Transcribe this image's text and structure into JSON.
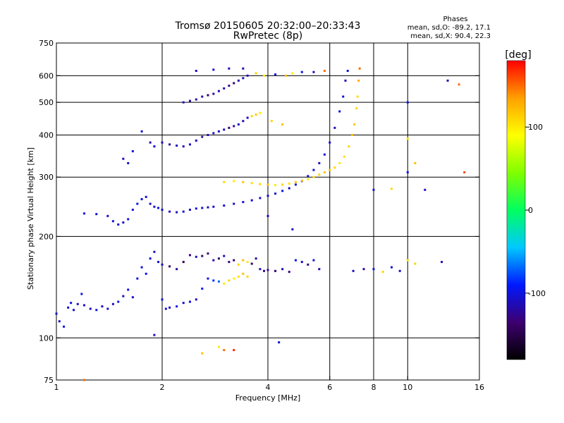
{
  "chart_data": {
    "type": "scatter",
    "title": "Tromsø 20150605 20:32:00–20:33:43",
    "subtitle": "RwPretec (8p)",
    "xlabel": "Frequency [MHz]",
    "ylabel": "Stationary phase Virtual Height [km]",
    "x_scale": "log",
    "y_scale": "log",
    "xlim": [
      1,
      16
    ],
    "ylim": [
      75,
      750
    ],
    "grid": true,
    "x_ticks": [
      1,
      2,
      4,
      6,
      8,
      10,
      16
    ],
    "x_gridlines": [
      2,
      4,
      6,
      8,
      10
    ],
    "y_ticks": [
      75,
      100,
      200,
      300,
      400,
      500,
      600,
      750
    ],
    "y_gridlines": [
      100,
      200,
      300,
      400,
      500,
      600
    ],
    "stats": {
      "heading": "Phases",
      "line_o": "mean, sd,O: -89.2, 17.1",
      "line_x": "mean, sd,X:  90.4, 22.3"
    },
    "colorbar": {
      "label": "[deg]",
      "min": -180,
      "max": 180,
      "ticks": [
        100,
        0,
        -100
      ],
      "colors": [
        "#000000",
        "#3d0070",
        "#0018ff",
        "#00c8ff",
        "#00ff60",
        "#80ff00",
        "#ffff00",
        "#ffa000",
        "#ff0000"
      ]
    },
    "series": [
      {
        "trace": "lower-E-and-F1-traces",
        "points": [
          [
            1.0,
            118,
            -105
          ],
          [
            1.02,
            112,
            -110
          ],
          [
            1.05,
            108,
            -100
          ],
          [
            1.08,
            123,
            -108
          ],
          [
            1.1,
            127,
            -100
          ],
          [
            1.12,
            121,
            -105
          ],
          [
            1.15,
            126,
            -112
          ],
          [
            1.18,
            135,
            -102
          ],
          [
            1.2,
            125,
            -108
          ],
          [
            1.25,
            122,
            -110
          ],
          [
            1.3,
            121,
            -100
          ],
          [
            1.35,
            124,
            -110
          ],
          [
            1.4,
            122,
            -105
          ],
          [
            1.45,
            126,
            -108
          ],
          [
            1.5,
            128,
            -100
          ],
          [
            1.55,
            133,
            -110
          ],
          [
            1.6,
            139,
            -102
          ],
          [
            1.65,
            132,
            -108
          ],
          [
            1.7,
            150,
            -100
          ],
          [
            1.75,
            162,
            -105
          ],
          [
            1.8,
            155,
            -95
          ],
          [
            1.85,
            172,
            -100
          ],
          [
            1.9,
            180,
            -108
          ],
          [
            1.95,
            168,
            -100
          ],
          [
            2.0,
            130,
            -95
          ],
          [
            2.05,
            122,
            -105
          ],
          [
            2.1,
            123,
            -110
          ],
          [
            2.2,
            124,
            -100
          ],
          [
            2.3,
            127,
            -108
          ],
          [
            2.4,
            128,
            -100
          ],
          [
            2.5,
            130,
            -110
          ],
          [
            2.6,
            140,
            -90
          ],
          [
            2.7,
            150,
            -100
          ],
          [
            2.8,
            148,
            -85
          ],
          [
            2.9,
            147,
            -70
          ],
          [
            3.0,
            145,
            100
          ],
          [
            3.1,
            148,
            110
          ],
          [
            3.2,
            150,
            95
          ],
          [
            3.3,
            152,
            105
          ],
          [
            3.4,
            155,
            120
          ],
          [
            3.5,
            152,
            110
          ]
        ]
      },
      {
        "trace": "upper-F1-band",
        "points": [
          [
            2.0,
            165,
            -110
          ],
          [
            2.1,
            163,
            -140
          ],
          [
            2.2,
            160,
            -120
          ],
          [
            2.3,
            168,
            -150
          ],
          [
            2.4,
            176,
            -130
          ],
          [
            2.5,
            174,
            -110
          ],
          [
            2.6,
            175,
            -140
          ],
          [
            2.7,
            178,
            -130
          ],
          [
            2.8,
            170,
            -120
          ],
          [
            2.9,
            172,
            -140
          ],
          [
            3.0,
            175,
            -110
          ],
          [
            3.1,
            168,
            -130
          ],
          [
            3.2,
            170,
            -140
          ],
          [
            3.3,
            165,
            110
          ],
          [
            3.4,
            170,
            120
          ],
          [
            3.5,
            168,
            100
          ],
          [
            3.6,
            166,
            -140
          ],
          [
            3.7,
            172,
            -120
          ],
          [
            3.8,
            160,
            -110
          ],
          [
            3.9,
            158,
            -130
          ],
          [
            4.0,
            159,
            -120
          ],
          [
            4.2,
            158,
            -140
          ],
          [
            4.4,
            160,
            -110
          ],
          [
            4.6,
            157,
            -130
          ],
          [
            4.8,
            170,
            -100
          ],
          [
            5.0,
            168,
            -110
          ],
          [
            5.2,
            165,
            -130
          ],
          [
            5.4,
            170,
            -105
          ],
          [
            5.6,
            160,
            -120
          ],
          [
            7.0,
            158,
            -110
          ],
          [
            7.5,
            160,
            -120
          ],
          [
            8.0,
            160,
            -100
          ],
          [
            8.5,
            157,
            110
          ],
          [
            9.0,
            162,
            -105
          ],
          [
            9.5,
            158,
            -110
          ],
          [
            10.0,
            170,
            100
          ],
          [
            10.5,
            166,
            110
          ]
        ]
      },
      {
        "trace": "F-region-o-trace",
        "points": [
          [
            1.2,
            234,
            -100
          ],
          [
            1.3,
            233,
            -105
          ],
          [
            1.4,
            230,
            -110
          ],
          [
            1.45,
            222,
            -100
          ],
          [
            1.5,
            217,
            -105
          ],
          [
            1.55,
            220,
            -110
          ],
          [
            1.6,
            225,
            -100
          ],
          [
            1.65,
            240,
            -105
          ],
          [
            1.7,
            250,
            -95
          ],
          [
            1.75,
            258,
            -100
          ],
          [
            1.8,
            262,
            -105
          ],
          [
            1.85,
            250,
            -108
          ],
          [
            1.9,
            245,
            -110
          ],
          [
            1.95,
            243,
            -100
          ],
          [
            2.0,
            240,
            -105
          ],
          [
            2.1,
            237,
            -110
          ],
          [
            2.2,
            236,
            -108
          ],
          [
            2.3,
            237,
            -105
          ],
          [
            2.4,
            240,
            -110
          ],
          [
            2.5,
            242,
            -100
          ],
          [
            2.6,
            243,
            -105
          ],
          [
            2.7,
            244,
            -110
          ],
          [
            2.8,
            245,
            -108
          ],
          [
            3.0,
            247,
            -105
          ],
          [
            3.2,
            250,
            -110
          ],
          [
            3.4,
            253,
            -100
          ],
          [
            3.6,
            256,
            -105
          ],
          [
            3.8,
            260,
            -110
          ],
          [
            4.0,
            264,
            -108
          ],
          [
            4.2,
            268,
            -105
          ],
          [
            4.4,
            273,
            -100
          ],
          [
            4.6,
            278,
            -110
          ],
          [
            4.8,
            285,
            -105
          ],
          [
            5.0,
            292,
            -100
          ],
          [
            5.2,
            302,
            -108
          ],
          [
            5.4,
            315,
            -105
          ],
          [
            5.6,
            330,
            -110
          ],
          [
            5.8,
            350,
            -100
          ],
          [
            6.0,
            380,
            -105
          ],
          [
            6.2,
            420,
            -110
          ],
          [
            6.4,
            470,
            -100
          ],
          [
            6.55,
            520,
            -105
          ],
          [
            6.65,
            580,
            -110
          ],
          [
            6.75,
            620,
            -100
          ]
        ]
      },
      {
        "trace": "F-region-x-trace",
        "points": [
          [
            3.0,
            290,
            110
          ],
          [
            3.2,
            292,
            100
          ],
          [
            3.4,
            290,
            115
          ],
          [
            3.6,
            288,
            105
          ],
          [
            3.8,
            286,
            110
          ],
          [
            4.0,
            285,
            120
          ],
          [
            4.2,
            284,
            100
          ],
          [
            4.4,
            285,
            110
          ],
          [
            4.6,
            287,
            105
          ],
          [
            4.8,
            290,
            115
          ],
          [
            5.0,
            293,
            110
          ],
          [
            5.2,
            296,
            100
          ],
          [
            5.4,
            300,
            105
          ],
          [
            5.6,
            305,
            110
          ],
          [
            5.8,
            310,
            120
          ],
          [
            6.0,
            315,
            115
          ],
          [
            6.2,
            320,
            110
          ],
          [
            6.4,
            330,
            100
          ],
          [
            6.6,
            345,
            105
          ],
          [
            6.8,
            370,
            110
          ],
          [
            6.95,
            400,
            120
          ],
          [
            7.05,
            430,
            115
          ],
          [
            7.15,
            480,
            110
          ],
          [
            7.2,
            520,
            105
          ],
          [
            7.25,
            580,
            130
          ],
          [
            7.3,
            630,
            150
          ]
        ]
      },
      {
        "trace": "multi-hop-echoes-400km",
        "points": [
          [
            2.0,
            380,
            -110
          ],
          [
            2.1,
            375,
            -120
          ],
          [
            2.2,
            372,
            -110
          ],
          [
            2.3,
            370,
            -115
          ],
          [
            2.4,
            375,
            -105
          ],
          [
            2.5,
            385,
            -110
          ],
          [
            2.6,
            395,
            -120
          ],
          [
            2.7,
            400,
            -115
          ],
          [
            2.8,
            405,
            -110
          ],
          [
            2.9,
            410,
            -105
          ],
          [
            3.0,
            415,
            -110
          ],
          [
            3.1,
            420,
            -140
          ],
          [
            3.2,
            425,
            -120
          ],
          [
            3.3,
            430,
            -110
          ],
          [
            3.4,
            440,
            -115
          ],
          [
            3.5,
            450,
            -110
          ],
          [
            3.6,
            455,
            110
          ],
          [
            3.7,
            460,
            115
          ],
          [
            3.8,
            465,
            100
          ],
          [
            4.1,
            440,
            110
          ],
          [
            4.4,
            430,
            120
          ]
        ]
      },
      {
        "trace": "multi-hop-echoes-500km",
        "points": [
          [
            2.3,
            500,
            -110
          ],
          [
            2.4,
            505,
            -120
          ],
          [
            2.5,
            510,
            -115
          ],
          [
            2.6,
            520,
            -110
          ],
          [
            2.7,
            525,
            -140
          ],
          [
            2.8,
            530,
            -120
          ],
          [
            2.9,
            540,
            -115
          ],
          [
            3.0,
            550,
            -110
          ],
          [
            3.1,
            560,
            -130
          ],
          [
            3.2,
            570,
            -140
          ],
          [
            3.3,
            580,
            -120
          ],
          [
            3.4,
            590,
            -110
          ],
          [
            3.5,
            600,
            -115
          ],
          [
            3.7,
            610,
            110
          ],
          [
            3.9,
            600,
            100
          ],
          [
            4.2,
            605,
            -100
          ],
          [
            4.5,
            600,
            120
          ],
          [
            4.7,
            610,
            100
          ],
          [
            5.0,
            615,
            -100
          ],
          [
            5.4,
            615,
            -110
          ],
          [
            5.8,
            620,
            150
          ],
          [
            2.5,
            620,
            -110
          ],
          [
            2.8,
            625,
            -105
          ],
          [
            3.1,
            630,
            -110
          ],
          [
            3.4,
            630,
            -115
          ]
        ]
      },
      {
        "trace": "scattered-echoes",
        "points": [
          [
            1.55,
            340,
            -110
          ],
          [
            1.6,
            330,
            -105
          ],
          [
            1.65,
            358,
            -100
          ],
          [
            1.75,
            410,
            -105
          ],
          [
            1.85,
            380,
            -110
          ],
          [
            1.9,
            370,
            -100
          ],
          [
            2.6,
            90,
            120
          ],
          [
            2.9,
            94,
            100
          ],
          [
            3.0,
            92,
            150
          ],
          [
            3.2,
            92,
            170
          ],
          [
            1.9,
            102,
            -110
          ],
          [
            4.3,
            97,
            -105
          ],
          [
            4.7,
            210,
            -110
          ],
          [
            4.0,
            230,
            -105
          ],
          [
            8.0,
            275,
            -105
          ],
          [
            9.0,
            277,
            110
          ],
          [
            10.0,
            310,
            -100
          ],
          [
            11.2,
            275,
            -110
          ],
          [
            10.0,
            500,
            -105
          ],
          [
            13.0,
            580,
            -110
          ],
          [
            14.0,
            565,
            150
          ],
          [
            14.5,
            310,
            160
          ],
          [
            10.5,
            330,
            120
          ],
          [
            12.5,
            168,
            -110
          ],
          [
            10.0,
            390,
            100
          ],
          [
            1.2,
            75,
            150
          ]
        ]
      }
    ]
  }
}
